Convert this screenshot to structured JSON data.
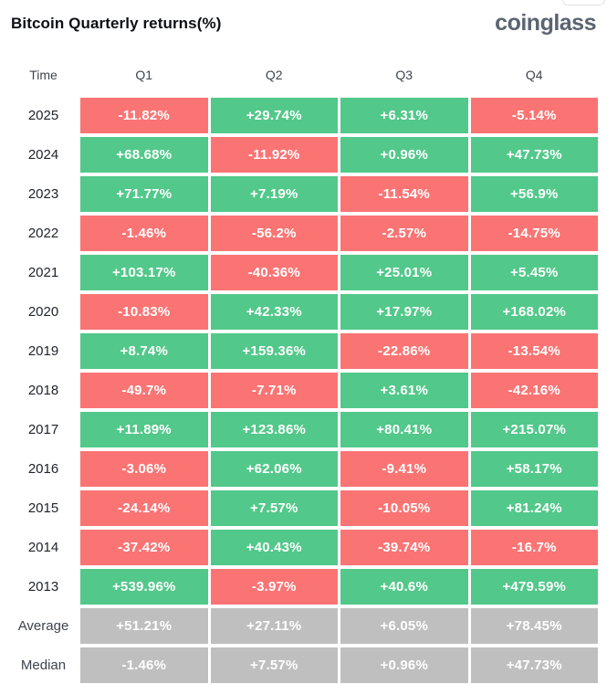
{
  "header": {
    "title": "Bitcoin Quarterly returns(%)",
    "logo_text": "coinglass"
  },
  "colors": {
    "positive": "#52c88a",
    "negative": "#fa7474",
    "neutral": "#bfbfbf",
    "cell_text": "#ffffff"
  },
  "chart_data": {
    "type": "table",
    "title": "Bitcoin Quarterly returns(%)",
    "columns": [
      "Time",
      "Q1",
      "Q2",
      "Q3",
      "Q4"
    ],
    "legend_rule": "green = positive return, red = negative return, gray = summary rows",
    "rows": [
      {
        "label": "2025",
        "style": "year",
        "values": [
          "-11.82%",
          "+29.74%",
          "+6.31%",
          "-5.14%"
        ]
      },
      {
        "label": "2024",
        "style": "year",
        "values": [
          "+68.68%",
          "-11.92%",
          "+0.96%",
          "+47.73%"
        ]
      },
      {
        "label": "2023",
        "style": "year",
        "values": [
          "+71.77%",
          "+7.19%",
          "-11.54%",
          "+56.9%"
        ]
      },
      {
        "label": "2022",
        "style": "year",
        "values": [
          "-1.46%",
          "-56.2%",
          "-2.57%",
          "-14.75%"
        ]
      },
      {
        "label": "2021",
        "style": "year",
        "values": [
          "+103.17%",
          "-40.36%",
          "+25.01%",
          "+5.45%"
        ]
      },
      {
        "label": "2020",
        "style": "year",
        "values": [
          "-10.83%",
          "+42.33%",
          "+17.97%",
          "+168.02%"
        ]
      },
      {
        "label": "2019",
        "style": "year",
        "values": [
          "+8.74%",
          "+159.36%",
          "-22.86%",
          "-13.54%"
        ]
      },
      {
        "label": "2018",
        "style": "year",
        "values": [
          "-49.7%",
          "-7.71%",
          "+3.61%",
          "-42.16%"
        ]
      },
      {
        "label": "2017",
        "style": "year",
        "values": [
          "+11.89%",
          "+123.86%",
          "+80.41%",
          "+215.07%"
        ]
      },
      {
        "label": "2016",
        "style": "year",
        "values": [
          "-3.06%",
          "+62.06%",
          "-9.41%",
          "+58.17%"
        ]
      },
      {
        "label": "2015",
        "style": "year",
        "values": [
          "-24.14%",
          "+7.57%",
          "-10.05%",
          "+81.24%"
        ]
      },
      {
        "label": "2014",
        "style": "year",
        "values": [
          "-37.42%",
          "+40.43%",
          "-39.74%",
          "-16.7%"
        ]
      },
      {
        "label": "2013",
        "style": "year",
        "values": [
          "+539.96%",
          "-3.97%",
          "+40.6%",
          "+479.59%"
        ]
      },
      {
        "label": "Average",
        "style": "summary",
        "values": [
          "+51.21%",
          "+27.11%",
          "+6.05%",
          "+78.45%"
        ]
      },
      {
        "label": "Median",
        "style": "summary",
        "values": [
          "-1.46%",
          "+7.57%",
          "+0.96%",
          "+47.73%"
        ]
      }
    ]
  }
}
